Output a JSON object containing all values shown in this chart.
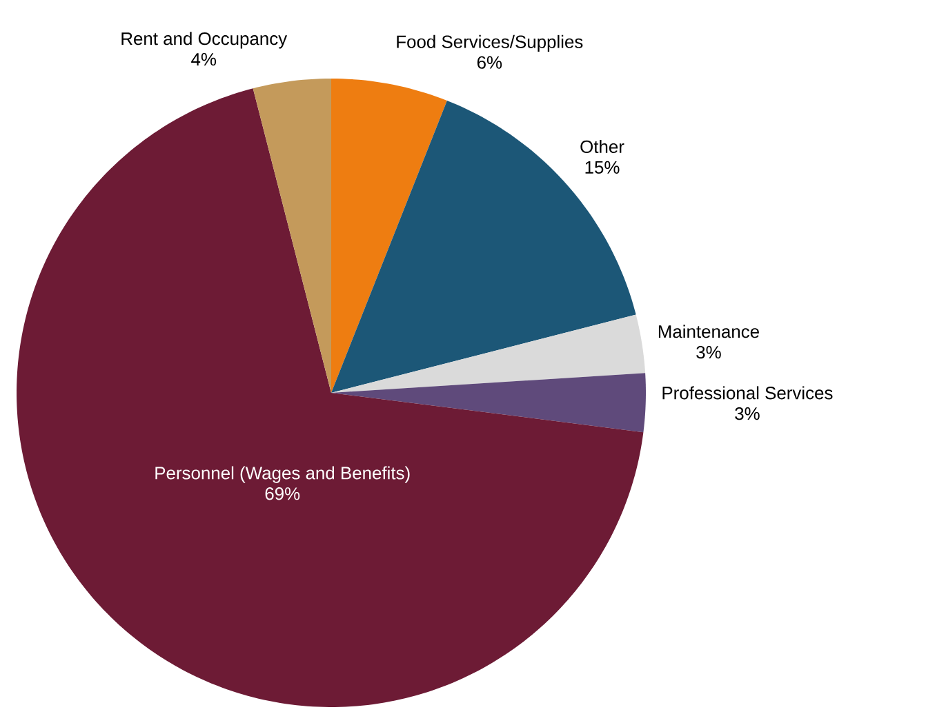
{
  "chart_data": {
    "type": "pie",
    "categories": [
      "Food Services/Supplies",
      "Other",
      "Maintenance",
      "Professional Services",
      "Personnel (Wages and Benefits)",
      "Rent and Occupancy"
    ],
    "values": [
      6,
      15,
      3,
      3,
      69,
      4
    ],
    "value_labels": [
      "6%",
      "15%",
      "3%",
      "3%",
      "69%",
      "4%"
    ],
    "colors": [
      "#ee7d11",
      "#1c5777",
      "#dadada",
      "#5f4a7b",
      "#6d1b35",
      "#c49a5b"
    ]
  }
}
